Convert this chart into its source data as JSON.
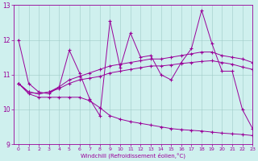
{
  "xlabel": "Windchill (Refroidissement éolien,°C)",
  "bg_color": "#cff0ee",
  "line_color": "#990099",
  "xlim": [
    -0.5,
    23
  ],
  "ylim": [
    9,
    13
  ],
  "yticks": [
    9,
    10,
    11,
    12,
    13
  ],
  "xticks": [
    0,
    1,
    2,
    3,
    4,
    5,
    6,
    7,
    8,
    9,
    10,
    11,
    12,
    13,
    14,
    15,
    16,
    17,
    18,
    19,
    20,
    21,
    22,
    23
  ],
  "hours": [
    0,
    1,
    2,
    3,
    4,
    5,
    6,
    7,
    8,
    9,
    10,
    11,
    12,
    13,
    14,
    15,
    16,
    17,
    18,
    19,
    20,
    21,
    22,
    23
  ],
  "line1": [
    12.0,
    10.75,
    10.5,
    10.45,
    10.65,
    11.7,
    11.05,
    10.3,
    9.82,
    12.55,
    11.2,
    12.2,
    11.5,
    11.55,
    11.0,
    10.85,
    11.35,
    11.75,
    12.85,
    11.9,
    11.1,
    11.1,
    10.0,
    9.45
  ],
  "line2": [
    10.75,
    10.5,
    10.45,
    10.5,
    10.65,
    10.85,
    10.95,
    11.05,
    11.15,
    11.25,
    11.3,
    11.35,
    11.4,
    11.45,
    11.45,
    11.5,
    11.55,
    11.6,
    11.65,
    11.65,
    11.55,
    11.5,
    11.45,
    11.35
  ],
  "line3": [
    10.75,
    10.5,
    10.45,
    10.5,
    10.6,
    10.75,
    10.85,
    10.9,
    10.95,
    11.05,
    11.1,
    11.15,
    11.2,
    11.25,
    11.25,
    11.28,
    11.32,
    11.35,
    11.38,
    11.4,
    11.35,
    11.3,
    11.22,
    11.15
  ],
  "line4": [
    10.75,
    10.45,
    10.35,
    10.35,
    10.35,
    10.35,
    10.35,
    10.25,
    10.05,
    9.82,
    9.72,
    9.65,
    9.6,
    9.55,
    9.5,
    9.45,
    9.42,
    9.4,
    9.38,
    9.35,
    9.32,
    9.3,
    9.28,
    9.25
  ]
}
